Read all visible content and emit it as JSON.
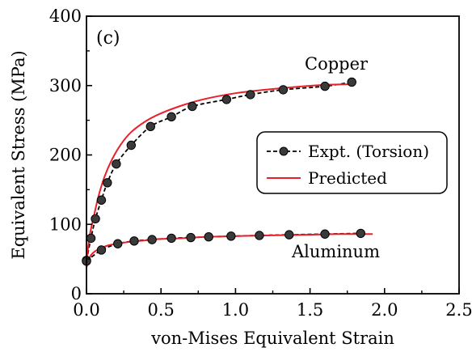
{
  "chart_data": {
    "type": "line",
    "panel_label": "(c)",
    "xlabel": "von-Mises Equivalent Strain",
    "ylabel": "Equivalent Stress (MPa)",
    "xlim": [
      0,
      2.5
    ],
    "ylim": [
      0,
      400
    ],
    "x_ticks": [
      0.0,
      0.5,
      1.0,
      1.5,
      2.0,
      2.5
    ],
    "x_tick_labels": [
      "0.0",
      "0.5",
      "1.0",
      "1.5",
      "2.0",
      "2.5"
    ],
    "y_ticks": [
      0,
      100,
      200,
      300,
      400
    ],
    "y_tick_labels": [
      "0",
      "100",
      "200",
      "300",
      "400"
    ],
    "grid": false,
    "legend_position": "center-right",
    "legend": [
      {
        "label": "Expt. (Torsion)",
        "style": "dashed-black-with-circle-markers"
      },
      {
        "label": "Predicted",
        "style": "solid-red"
      }
    ],
    "annotations": [
      {
        "text": "Copper"
      },
      {
        "text": "Aluminum"
      }
    ],
    "series": [
      {
        "name": "Expt. (Torsion)",
        "group": "Copper",
        "color": "#000000",
        "x": [
          0.0,
          0.03,
          0.06,
          0.1,
          0.14,
          0.2,
          0.3,
          0.43,
          0.57,
          0.71,
          0.94,
          1.1,
          1.32,
          1.6,
          1.78
        ],
        "y": [
          48,
          80,
          108,
          135,
          160,
          187,
          214,
          241,
          255,
          270,
          280,
          287,
          294,
          299,
          305
        ]
      },
      {
        "name": "Expt. (Torsion)",
        "group": "Aluminum",
        "color": "#000000",
        "x": [
          0.0,
          0.1,
          0.21,
          0.32,
          0.44,
          0.57,
          0.7,
          0.82,
          0.97,
          1.16,
          1.36,
          1.6,
          1.84
        ],
        "y": [
          47,
          63,
          72,
          76,
          78,
          80,
          81,
          82,
          83,
          84,
          85,
          86,
          87
        ]
      },
      {
        "name": "Predicted",
        "group": "Copper",
        "color": "#e8202a",
        "x": [
          0.0,
          0.02,
          0.05,
          0.08,
          0.12,
          0.17,
          0.23,
          0.3,
          0.4,
          0.5,
          0.65,
          0.8,
          1.0,
          1.2,
          1.4,
          1.6,
          1.8
        ],
        "y": [
          45,
          82,
          112,
          140,
          168,
          193,
          215,
          233,
          249,
          260,
          272,
          281,
          289,
          294,
          298,
          301,
          302
        ]
      },
      {
        "name": "Predicted",
        "group": "Aluminum",
        "color": "#e8202a",
        "x": [
          0.0,
          0.02,
          0.05,
          0.1,
          0.15,
          0.2,
          0.3,
          0.4,
          0.5,
          0.65,
          0.8,
          1.0,
          1.2,
          1.5,
          1.7,
          1.92
        ],
        "y": [
          38,
          52,
          60,
          66,
          70,
          72,
          75,
          77,
          79,
          80,
          82,
          83,
          84,
          85,
          86,
          86
        ]
      }
    ]
  }
}
